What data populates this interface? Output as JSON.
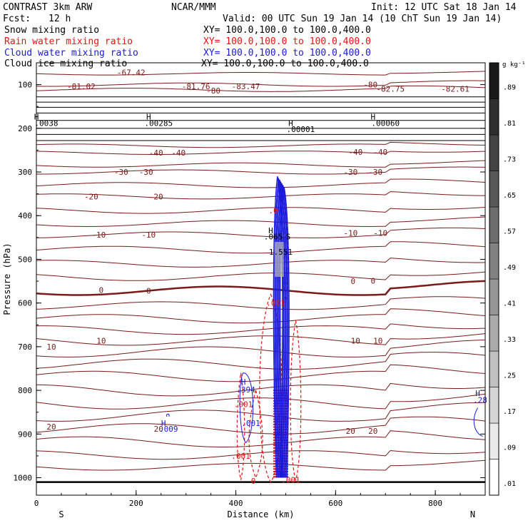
{
  "header": {
    "model": "CONTRAST  3km ARW",
    "org": "NCAR/MMM",
    "init": "Init: 12 UTC Sat 18 Jan 14",
    "fcst_label": "Fcst:",
    "fcst_value": "12 h",
    "valid": "Valid: 00 UTC Sun 19 Jan 14 (10 ChT Sun 19 Jan 14)"
  },
  "legend": [
    {
      "name": "Snow mixing ratio",
      "xy": "XY= 100.0,100.0 to 100.0,400.0",
      "color": "#000000"
    },
    {
      "name": "Rain water mixing ratio",
      "xy": "XY= 100.0,100.0 to 100.0,400.0",
      "color": "#ee1111"
    },
    {
      "name": "Cloud water mixing ratio",
      "xy": "XY= 100.0,100.0 to 100.0,400.0",
      "color": "#1a1add"
    },
    {
      "name": "Cloud ice mixing ratio",
      "xy": "XY= 100.0,100.0 to 100.0,400.0",
      "color": "#000000"
    }
  ],
  "chart_data": {
    "type": "cross-section",
    "xlabel": "Distance (km)",
    "ylabel": "Pressure (hPa)",
    "xlim": [
      0,
      900
    ],
    "ylim": [
      1040,
      50
    ],
    "x_ticks": [
      0,
      200,
      400,
      600,
      800
    ],
    "y_ticks": [
      100,
      200,
      300,
      400,
      500,
      600,
      700,
      800,
      900,
      1000
    ],
    "direction_left": "S",
    "direction_right": "N",
    "colorbar": {
      "unit": "g kg⁻¹",
      "labels": [
        ".89",
        ".81",
        ".73",
        ".65",
        ".57",
        ".49",
        ".41",
        ".33",
        ".25",
        ".17",
        ".09",
        ".01"
      ]
    },
    "temperature_labels": [
      {
        "text": "-67.42",
        "x": 190,
        "p": 72
      },
      {
        "text": "-81.02",
        "x": 90,
        "p": 104
      },
      {
        "text": "-81.76",
        "x": 320,
        "p": 104
      },
      {
        "text": "-80",
        "x": 355,
        "p": 114
      },
      {
        "text": "-83.47",
        "x": 420,
        "p": 104
      },
      {
        "text": "-80",
        "x": 670,
        "p": 100
      },
      {
        "text": "-82.75",
        "x": 710,
        "p": 110
      },
      {
        "text": "-82.61",
        "x": 840,
        "p": 110
      },
      {
        "text": "-40",
        "x": 240,
        "p": 256
      },
      {
        "text": "-40",
        "x": 285,
        "p": 256
      },
      {
        "text": "-40",
        "x": 640,
        "p": 254
      },
      {
        "text": "-40",
        "x": 690,
        "p": 254
      },
      {
        "text": "-30",
        "x": 170,
        "p": 300
      },
      {
        "text": "-30",
        "x": 220,
        "p": 300
      },
      {
        "text": "-30",
        "x": 630,
        "p": 300
      },
      {
        "text": "-30",
        "x": 680,
        "p": 300
      },
      {
        "text": "-20",
        "x": 110,
        "p": 356
      },
      {
        "text": "-20",
        "x": 240,
        "p": 356
      },
      {
        "text": "-10",
        "x": 125,
        "p": 444
      },
      {
        "text": "-10",
        "x": 225,
        "p": 444
      },
      {
        "text": "-10",
        "x": 630,
        "p": 440
      },
      {
        "text": "-10",
        "x": 690,
        "p": 440
      },
      {
        "text": "0",
        "x": 130,
        "p": 570
      },
      {
        "text": "0",
        "x": 225,
        "p": 572
      },
      {
        "text": "0",
        "x": 635,
        "p": 550
      },
      {
        "text": "0",
        "x": 675,
        "p": 549
      },
      {
        "text": "10",
        "x": 130,
        "p": 686
      },
      {
        "text": "10",
        "x": 30,
        "p": 700
      },
      {
        "text": "10",
        "x": 640,
        "p": 686
      },
      {
        "text": "10",
        "x": 685,
        "p": 686
      },
      {
        "text": "20",
        "x": 30,
        "p": 883
      },
      {
        "text": "20",
        "x": 245,
        "p": 888
      },
      {
        "text": "20",
        "x": 630,
        "p": 893
      },
      {
        "text": "20",
        "x": 675,
        "p": 893
      }
    ],
    "extrema_labels": [
      {
        "text": "H",
        "x": 0,
        "p": 173
      },
      {
        "text": ".0038",
        "x": 20,
        "p": 188,
        "color": "#000000"
      },
      {
        "text": "H",
        "x": 225,
        "p": 173
      },
      {
        "text": ".00285",
        "x": 245,
        "p": 188,
        "color": "#000000"
      },
      {
        "text": "H",
        "x": 510,
        "p": 188
      },
      {
        "text": ".00001",
        "x": 530,
        "p": 202,
        "color": "#000000"
      },
      {
        "text": "H",
        "x": 675,
        "p": 173
      },
      {
        "text": ".00060",
        "x": 700,
        "p": 188,
        "color": "#000000"
      },
      {
        "text": "H",
        "x": 470,
        "p": 434,
        "color": "#000000"
      },
      {
        "text": ".065",
        "x": 475,
        "p": 448,
        "color": "#000000"
      },
      {
        "text": "S",
        "x": 505,
        "p": 448,
        "color": "#000000"
      },
      {
        "text": "1.551",
        "x": 490,
        "p": 483,
        "color": "#000000"
      },
      {
        "text": ".001",
        "x": 480,
        "p": 600,
        "color": "#ee1111"
      },
      {
        "text": ".0",
        "x": 475,
        "p": 388,
        "color": "#ee1111"
      },
      {
        "text": ".001",
        "x": 415,
        "p": 832,
        "color": "#ee1111"
      },
      {
        "text": ".001",
        "x": 410,
        "p": 950,
        "color": "#ee1111"
      },
      {
        "text": ".001",
        "x": 510,
        "p": 1005,
        "color": "#ee1111"
      },
      {
        "text": "0",
        "x": 435,
        "p": 1007,
        "color": "#ee1111"
      },
      {
        "text": "H",
        "x": 415,
        "p": 780,
        "color": "#1a1add"
      },
      {
        "text": ".394",
        "x": 420,
        "p": 798,
        "color": "#1a1add"
      },
      {
        "text": ".001",
        "x": 430,
        "p": 875,
        "color": "#1a1add"
      },
      {
        "text": "H",
        "x": 255,
        "p": 875,
        "color": "#1a1add"
      },
      {
        "text": ".009",
        "x": 265,
        "p": 888,
        "color": "#1a1add"
      },
      {
        "text": "H",
        "x": 885,
        "p": 806,
        "color": "#1a1add"
      },
      {
        "text": ".28",
        "x": 890,
        "p": 822,
        "color": "#1a1add"
      }
    ]
  }
}
